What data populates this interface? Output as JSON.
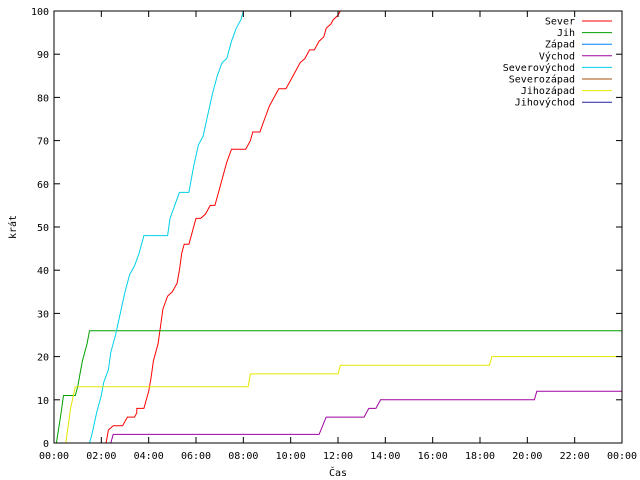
{
  "chart_data": {
    "type": "line",
    "title": "",
    "xlabel": "Čas",
    "ylabel": "krát",
    "xlim": [
      0,
      24
    ],
    "ylim": [
      0,
      100
    ],
    "grid": false,
    "legend_position": "top-right",
    "x_tick_labels": [
      "00:00",
      "02:00",
      "04:00",
      "06:00",
      "08:00",
      "10:00",
      "12:00",
      "14:00",
      "16:00",
      "18:00",
      "20:00",
      "22:00",
      "00:00"
    ],
    "y_tick_labels": [
      "0",
      "10",
      "20",
      "30",
      "40",
      "50",
      "60",
      "70",
      "80",
      "90",
      "100"
    ],
    "series": [
      {
        "name": "Sever",
        "color": "#ff0000",
        "points": [
          [
            2.2,
            0
          ],
          [
            2.3,
            3
          ],
          [
            2.5,
            4
          ],
          [
            2.9,
            4
          ],
          [
            3.0,
            5
          ],
          [
            3.1,
            6
          ],
          [
            3.4,
            6
          ],
          [
            3.5,
            7
          ],
          [
            3.5,
            8
          ],
          [
            3.8,
            8
          ],
          [
            3.9,
            10
          ],
          [
            4.0,
            12
          ],
          [
            4.1,
            15
          ],
          [
            4.2,
            19
          ],
          [
            4.4,
            23
          ],
          [
            4.5,
            27
          ],
          [
            4.6,
            31
          ],
          [
            4.8,
            34
          ],
          [
            5.0,
            35
          ],
          [
            5.1,
            36
          ],
          [
            5.2,
            37
          ],
          [
            5.3,
            40
          ],
          [
            5.4,
            44
          ],
          [
            5.5,
            46
          ],
          [
            5.7,
            46
          ],
          [
            5.8,
            48
          ],
          [
            5.9,
            50
          ],
          [
            6.0,
            52
          ],
          [
            6.2,
            52
          ],
          [
            6.4,
            53
          ],
          [
            6.6,
            55
          ],
          [
            6.8,
            55
          ],
          [
            6.9,
            57
          ],
          [
            7.0,
            59
          ],
          [
            7.2,
            63
          ],
          [
            7.3,
            65
          ],
          [
            7.5,
            68
          ],
          [
            7.8,
            68
          ],
          [
            8.1,
            68
          ],
          [
            8.3,
            70
          ],
          [
            8.4,
            72
          ],
          [
            8.7,
            72
          ],
          [
            8.9,
            75
          ],
          [
            9.1,
            78
          ],
          [
            9.3,
            80
          ],
          [
            9.5,
            82
          ],
          [
            9.8,
            82
          ],
          [
            10.0,
            84
          ],
          [
            10.2,
            86
          ],
          [
            10.4,
            88
          ],
          [
            10.6,
            89
          ],
          [
            10.8,
            91
          ],
          [
            11.0,
            91
          ],
          [
            11.2,
            93
          ],
          [
            11.4,
            94
          ],
          [
            11.5,
            96
          ],
          [
            11.7,
            97
          ],
          [
            11.8,
            98
          ],
          [
            12.0,
            99
          ],
          [
            12.1,
            100
          ]
        ]
      },
      {
        "name": "Jih",
        "color": "#00a000",
        "points": [
          [
            0.1,
            0
          ],
          [
            0.3,
            7
          ],
          [
            0.4,
            11
          ],
          [
            0.9,
            11
          ],
          [
            1.0,
            13
          ],
          [
            1.1,
            16
          ],
          [
            1.2,
            19
          ],
          [
            1.4,
            23
          ],
          [
            1.5,
            26
          ],
          [
            24,
            26
          ]
        ]
      },
      {
        "name": "Západ",
        "color": "#0080ff",
        "points": []
      },
      {
        "name": "Východ",
        "color": "#a000a0",
        "points": [
          [
            2.4,
            0
          ],
          [
            2.5,
            2
          ],
          [
            11.2,
            2
          ],
          [
            11.5,
            6
          ],
          [
            13.1,
            6
          ],
          [
            13.3,
            8
          ],
          [
            13.6,
            8
          ],
          [
            13.8,
            10
          ],
          [
            20.3,
            10
          ],
          [
            20.4,
            12
          ],
          [
            24,
            12
          ]
        ]
      },
      {
        "name": "Severovýchod",
        "color": "#00d0e8",
        "points": [
          [
            1.5,
            0
          ],
          [
            1.6,
            2
          ],
          [
            1.8,
            7
          ],
          [
            2.0,
            11
          ],
          [
            2.1,
            14
          ],
          [
            2.3,
            17
          ],
          [
            2.4,
            21
          ],
          [
            2.6,
            25
          ],
          [
            2.8,
            30
          ],
          [
            3.0,
            35
          ],
          [
            3.2,
            39
          ],
          [
            3.4,
            41
          ],
          [
            3.6,
            44
          ],
          [
            3.8,
            48
          ],
          [
            4.0,
            48
          ],
          [
            4.8,
            48
          ],
          [
            4.9,
            52
          ],
          [
            5.1,
            55
          ],
          [
            5.3,
            58
          ],
          [
            5.7,
            58
          ],
          [
            5.9,
            64
          ],
          [
            6.1,
            69
          ],
          [
            6.3,
            71
          ],
          [
            6.5,
            76
          ],
          [
            6.7,
            81
          ],
          [
            6.9,
            85
          ],
          [
            7.1,
            88
          ],
          [
            7.3,
            89
          ],
          [
            7.5,
            93
          ],
          [
            7.7,
            96
          ],
          [
            7.9,
            98
          ],
          [
            8.0,
            100
          ]
        ]
      },
      {
        "name": "Severozápad",
        "color": "#a05010",
        "points": []
      },
      {
        "name": "Jihozápad",
        "color": "#e6e600",
        "points": [
          [
            0.5,
            0
          ],
          [
            0.7,
            8
          ],
          [
            0.9,
            13
          ],
          [
            8.2,
            13
          ],
          [
            8.3,
            16
          ],
          [
            12.0,
            16
          ],
          [
            12.1,
            18
          ],
          [
            18.4,
            18
          ],
          [
            18.5,
            20
          ],
          [
            24,
            20
          ]
        ]
      },
      {
        "name": "Jihovýchod",
        "color": "#2020a0",
        "points": []
      }
    ]
  }
}
